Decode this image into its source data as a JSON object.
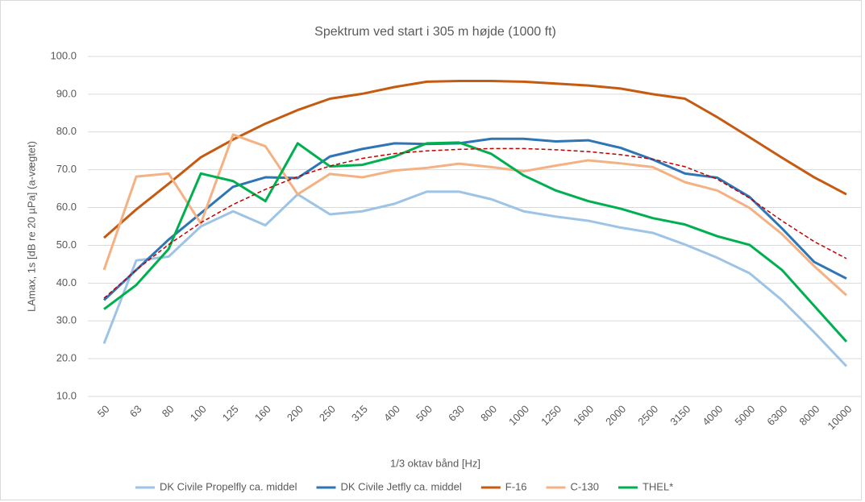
{
  "chart_data": {
    "type": "line",
    "title": "Spektrum ved start i 305 m højde (1000 ft)",
    "x_label": "1/3 oktav bånd [Hz]",
    "y_label": "LAmax, 1s [dB re 20 µPa] (a-vægtet)",
    "categories": [
      "50",
      "63",
      "80",
      "100",
      "125",
      "160",
      "200",
      "250",
      "315",
      "400",
      "500",
      "630",
      "800",
      "1000",
      "1250",
      "1600",
      "2000",
      "2500",
      "3150",
      "4000",
      "5000",
      "6300",
      "8000",
      "10000"
    ],
    "ylim": [
      10,
      100
    ],
    "yticks": [
      {
        "value": 10,
        "label": "10.0"
      },
      {
        "value": 20,
        "label": "20.0"
      },
      {
        "value": 30,
        "label": "30.0"
      },
      {
        "value": 40,
        "label": "40.0"
      },
      {
        "value": 50,
        "label": "50.0"
      },
      {
        "value": 60,
        "label": "60.0"
      },
      {
        "value": 70,
        "label": "70.0"
      },
      {
        "value": 80,
        "label": "80.0"
      },
      {
        "value": 90,
        "label": "90.0"
      },
      {
        "value": 100,
        "label": "100.0"
      }
    ],
    "grid": true,
    "legend": "bottom",
    "series": [
      {
        "name": "DK Civile Propelfly ca. middel",
        "color": "#9dc3e6",
        "values": [
          24,
          46,
          47,
          55,
          59,
          55.3,
          63.5,
          58.2,
          59,
          61,
          64.2,
          64.2,
          62.2,
          59,
          57.6,
          56.5,
          54.7,
          53.3,
          50.2,
          46.7,
          42.6,
          35.5,
          27,
          18
        ]
      },
      {
        "name": "DK Civile Jetfly ca. middel",
        "color": "#2e75b6",
        "values": [
          35.5,
          43.5,
          51.5,
          58.5,
          65.5,
          68,
          67.8,
          73.5,
          75.5,
          77,
          76.8,
          77,
          78.2,
          78.2,
          77.5,
          77.8,
          75.8,
          72.7,
          69,
          67.9,
          62.8,
          54.5,
          45.6,
          41.2
        ]
      },
      {
        "name": "F-16",
        "color": "#c55a11",
        "values": [
          52,
          59.5,
          66.3,
          73.3,
          78,
          82.2,
          85.8,
          88.8,
          90.1,
          91.9,
          93.3,
          93.5,
          93.5,
          93.3,
          92.8,
          92.3,
          91.5,
          90,
          88.8,
          83.9,
          78.6,
          73.2,
          68,
          63.5
        ]
      },
      {
        "name": "C-130",
        "color": "#f4b183",
        "values": [
          43.5,
          68.2,
          69,
          55.8,
          79.3,
          76.2,
          63.5,
          68.9,
          68,
          69.8,
          70.5,
          71.6,
          70.7,
          69.6,
          71.1,
          72.5,
          71.7,
          70.7,
          66.7,
          64.5,
          59.9,
          53,
          44.5,
          36.8
        ]
      },
      {
        "name": "THEL*",
        "color": "#00b050",
        "values": [
          33.1,
          39.5,
          49,
          69,
          67,
          61.7,
          77,
          70.9,
          71.3,
          73.5,
          77,
          77.2,
          74.2,
          68.5,
          64.5,
          61.7,
          59.7,
          57.2,
          55.5,
          52.4,
          50.1,
          43.5,
          34,
          24.5
        ]
      },
      {
        "color": "#c00000",
        "dashed": true,
        "values": [
          36,
          43.5,
          50.2,
          56,
          60.8,
          64.8,
          68.2,
          71,
          73,
          74.3,
          75,
          75.4,
          75.6,
          75.6,
          75.3,
          74.8,
          74,
          72.8,
          70.8,
          67.5,
          62.5,
          56.5,
          51,
          46.5
        ]
      }
    ]
  }
}
